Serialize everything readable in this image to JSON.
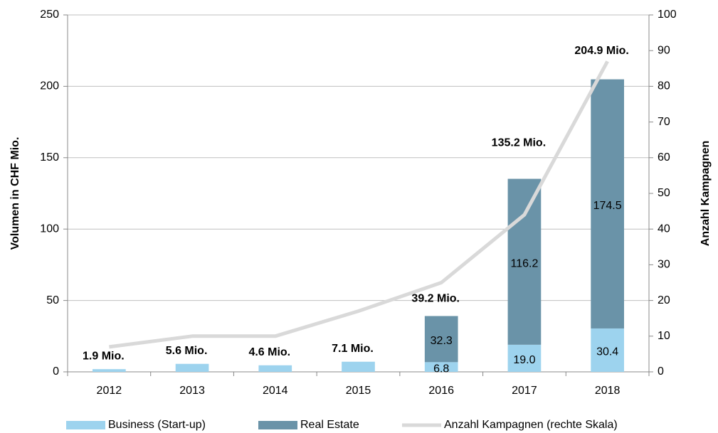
{
  "chart_data": {
    "type": "bar",
    "ylabel": "Volumen in CHF Mio.",
    "y2label": "Anzahl Kampagnen",
    "categories": [
      "2012",
      "2013",
      "2014",
      "2015",
      "2016",
      "2017",
      "2018"
    ],
    "series": [
      {
        "name": "Business (Start-up)",
        "color": "#9dd3ee",
        "values": [
          1.9,
          5.6,
          4.6,
          7.1,
          6.8,
          19.0,
          30.4
        ],
        "value_labels": [
          null,
          null,
          null,
          null,
          "6.8",
          "19.0",
          "30.4"
        ]
      },
      {
        "name": "Real Estate",
        "color": "#6a93a8",
        "values": [
          null,
          null,
          null,
          null,
          32.3,
          116.2,
          174.5
        ],
        "value_labels": [
          null,
          null,
          null,
          null,
          "32.3",
          "116.2",
          "174.5"
        ]
      },
      {
        "name": "Anzahl Kampagnen (rechte Skala)",
        "color": "#d9d9d9",
        "axis": "y2",
        "type": "line",
        "values": [
          7,
          10,
          10,
          17,
          25,
          44,
          87
        ]
      }
    ],
    "totals": [
      1.9,
      5.6,
      4.6,
      7.1,
      39.2,
      135.2,
      204.9
    ],
    "total_labels": [
      "1.9 Mio.",
      "5.6 Mio.",
      "4.6 Mio.",
      "7.1 Mio.",
      "39.2 Mio.",
      "135.2 Mio.",
      "204.9 Mio."
    ],
    "ylim": [
      0,
      250
    ],
    "yticks": [
      0,
      50,
      100,
      150,
      200,
      250
    ],
    "y2lim": [
      0,
      100
    ],
    "y2ticks": [
      0,
      10,
      20,
      30,
      40,
      50,
      60,
      70,
      80,
      90,
      100
    ],
    "grid": true
  }
}
